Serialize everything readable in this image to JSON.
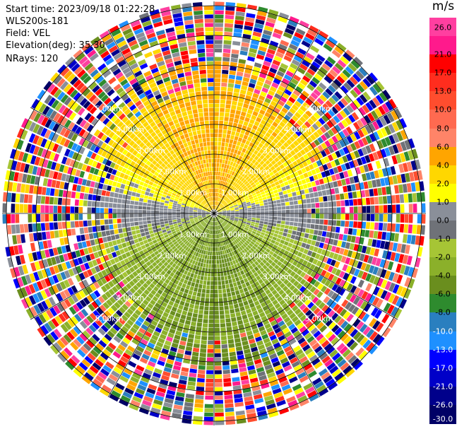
{
  "header": {
    "start_time": "Start time: 2023/09/18 01:22:28",
    "instrument": "WLS200s-181",
    "field": "Field: VEL",
    "elevation": "Elevation(deg): 35.30",
    "nrays": "NRays: 120"
  },
  "ring_labels": [
    "1.00km",
    "2.00km",
    "3.00km",
    "4.00km",
    "5.00km"
  ],
  "colorbar": {
    "unit": "m/s",
    "tick_labels": [
      "26.0",
      "21.0",
      "17.0",
      "13.0",
      "10.0",
      "8.0",
      "6.0",
      "4.0",
      "2.0",
      "1.0",
      "0.0",
      "-1.0",
      "-2.0",
      "-4.0",
      "-6.0",
      "-8.0",
      "-10.0",
      "-13.0",
      "-17.0",
      "-21.0",
      "-26.0",
      "-30.0"
    ],
    "bins": [
      {
        "lo": 26,
        "hi": 30,
        "color": "#ff3fa0"
      },
      {
        "lo": 21,
        "hi": 26,
        "color": "#ff1a8c"
      },
      {
        "lo": 17,
        "hi": 21,
        "color": "#ff0000"
      },
      {
        "lo": 13,
        "hi": 17,
        "color": "#ff2d1e"
      },
      {
        "lo": 10,
        "hi": 13,
        "color": "#ff4d2e"
      },
      {
        "lo": 8,
        "hi": 10,
        "color": "#ff6a50"
      },
      {
        "lo": 6,
        "hi": 8,
        "color": "#ff8468"
      },
      {
        "lo": 4,
        "hi": 6,
        "color": "#ffa500"
      },
      {
        "lo": 2,
        "hi": 4,
        "color": "#ffd700"
      },
      {
        "lo": 1,
        "hi": 2,
        "color": "#ffff00"
      },
      {
        "lo": 0,
        "hi": 1,
        "color": "#8a8f99"
      },
      {
        "lo": -1,
        "hi": 0,
        "color": "#6f7278"
      },
      {
        "lo": -2,
        "hi": -1,
        "color": "#a6c535"
      },
      {
        "lo": -4,
        "hi": -2,
        "color": "#8bb02a"
      },
      {
        "lo": -6,
        "hi": -4,
        "color": "#6a8e1e"
      },
      {
        "lo": -8,
        "hi": -6,
        "color": "#2e8b2e"
      },
      {
        "lo": -10,
        "hi": -8,
        "color": "#2a7fbf"
      },
      {
        "lo": -13,
        "hi": -10,
        "color": "#1e90ff"
      },
      {
        "lo": -17,
        "hi": -13,
        "color": "#0000ff"
      },
      {
        "lo": -21,
        "hi": -17,
        "color": "#0000c8"
      },
      {
        "lo": -26,
        "hi": -21,
        "color": "#00008b"
      },
      {
        "lo": -30,
        "hi": -26,
        "color": "#000066"
      }
    ]
  }
}
